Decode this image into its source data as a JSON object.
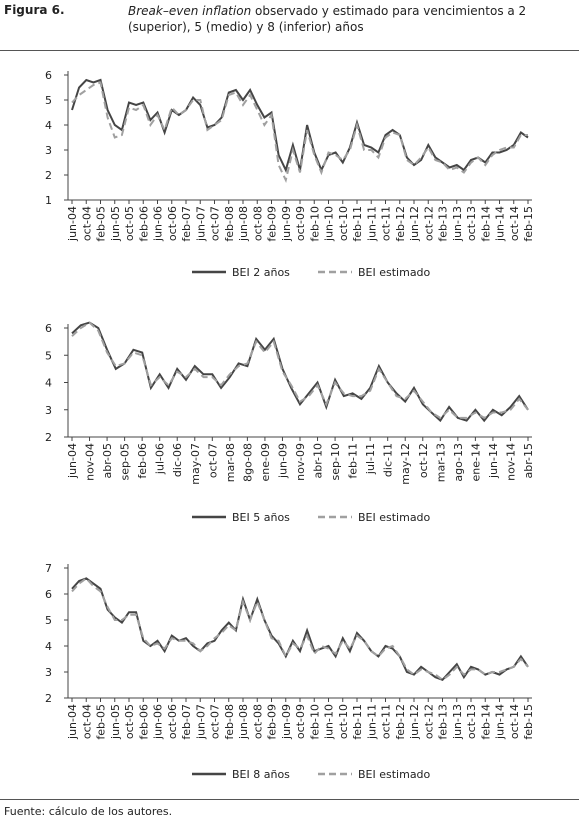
{
  "header": {
    "label": "Figura 6.",
    "title_italic": "Break–even inflation",
    "title_rest": "observado y estimado para vencimientos a 2 (superior), 5 (medio) y 8 (inferior) años"
  },
  "source": "Fuente:  cálculo de los autores.",
  "chart_data": [
    {
      "type": "line",
      "ylim": [
        1,
        6
      ],
      "yticks": [
        1,
        2,
        3,
        4,
        5,
        6
      ],
      "categories": [
        "jun-04",
        null,
        "oct-04",
        null,
        "feb-05",
        null,
        "jun-05",
        null,
        "oct-05",
        null,
        "feb-06",
        null,
        "jun-06",
        null,
        "oct-06",
        null,
        "feb-07",
        null,
        "jun-07",
        null,
        "oct-07",
        null,
        "feb-08",
        null,
        "jun-08",
        null,
        "oct-08",
        null,
        "feb-09",
        null,
        "jun-09",
        null,
        "oct-09",
        null,
        "feb-10",
        null,
        "jun-10",
        null,
        "oct-10",
        null,
        "feb-11",
        null,
        "jun-11",
        null,
        "oct-11",
        null,
        "feb-12",
        null,
        "jun-12",
        null,
        "oct-12",
        null,
        "feb-13",
        null,
        "jun-13",
        null,
        "oct-13",
        null,
        "feb-14",
        null,
        "jun-14",
        null,
        "oct-14",
        null,
        "feb-15"
      ],
      "series": [
        {
          "name": "BEI 2 años",
          "color": "#454545",
          "values": [
            4.6,
            5.5,
            5.8,
            5.7,
            5.8,
            4.6,
            4.0,
            3.8,
            4.9,
            4.8,
            4.9,
            4.2,
            4.5,
            3.7,
            4.6,
            4.4,
            4.6,
            5.1,
            4.8,
            3.9,
            4.0,
            4.3,
            5.3,
            5.4,
            5.0,
            5.4,
            4.8,
            4.3,
            4.5,
            2.8,
            2.2,
            3.2,
            2.2,
            4.0,
            2.9,
            2.2,
            2.8,
            2.9,
            2.5,
            3.1,
            4.1,
            3.2,
            3.1,
            2.9,
            3.6,
            3.8,
            3.6,
            2.7,
            2.4,
            2.6,
            3.2,
            2.7,
            2.5,
            2.3,
            2.4,
            2.2,
            2.6,
            2.7,
            2.5,
            2.9,
            2.9,
            3.0,
            3.2,
            3.7,
            3.5
          ]
        },
        {
          "name": "BEI estimado",
          "color": "#a0a0a0",
          "values": [
            4.9,
            5.2,
            5.4,
            5.6,
            5.7,
            4.3,
            3.5,
            3.6,
            4.7,
            4.6,
            4.8,
            4.0,
            4.4,
            3.8,
            4.7,
            4.4,
            4.6,
            5.0,
            5.0,
            3.8,
            4.0,
            4.2,
            5.2,
            5.3,
            4.8,
            5.2,
            4.6,
            4.0,
            4.4,
            2.4,
            1.8,
            3.0,
            2.1,
            3.8,
            2.8,
            2.1,
            2.9,
            2.8,
            2.6,
            3.0,
            4.0,
            3.0,
            3.0,
            2.7,
            3.5,
            3.7,
            3.6,
            2.6,
            2.4,
            2.7,
            3.1,
            2.6,
            2.5,
            2.2,
            2.3,
            2.1,
            2.5,
            2.7,
            2.4,
            2.8,
            3.0,
            3.1,
            3.1,
            3.6,
            3.6
          ]
        }
      ]
    },
    {
      "type": "line",
      "ylim": [
        2,
        6
      ],
      "yticks": [
        2,
        3,
        4,
        5,
        6
      ],
      "categories": [
        "jun-04",
        null,
        "nov-04",
        null,
        "abr-05",
        null,
        "sep-05",
        null,
        "feb-06",
        null,
        "jul-06",
        null,
        "dic-06",
        null,
        "may-07",
        null,
        "oct-07",
        null,
        "mar-08",
        null,
        "8go-08",
        null,
        "ene-09",
        null,
        "jun-09",
        null,
        "nov-09",
        null,
        "abr-10",
        null,
        "sep-10",
        null,
        "feb-11",
        null,
        "jul-11",
        null,
        "dic-11",
        null,
        "may-12",
        null,
        "oct-12",
        null,
        "mar-13",
        null,
        "ago-13",
        null,
        "ene-14",
        null,
        "jun-14",
        null,
        "nov-14",
        null,
        "abr-15"
      ],
      "series": [
        {
          "name": "BEI 5 años",
          "color": "#454545",
          "values": [
            5.8,
            6.1,
            6.2,
            6.0,
            5.2,
            4.5,
            4.7,
            5.2,
            5.1,
            3.8,
            4.3,
            3.8,
            4.5,
            4.1,
            4.6,
            4.3,
            4.3,
            3.8,
            4.2,
            4.7,
            4.6,
            5.6,
            5.2,
            5.6,
            4.5,
            3.8,
            3.2,
            3.6,
            4.0,
            3.1,
            4.1,
            3.5,
            3.6,
            3.4,
            3.8,
            4.6,
            4.0,
            3.6,
            3.3,
            3.8,
            3.2,
            2.9,
            2.6,
            3.1,
            2.7,
            2.6,
            3.0,
            2.6,
            3.0,
            2.8,
            3.1,
            3.5,
            3.0
          ]
        },
        {
          "name": "BEI estimado",
          "color": "#a0a0a0",
          "values": [
            5.7,
            6.0,
            6.2,
            5.9,
            5.1,
            4.6,
            4.7,
            5.1,
            5.0,
            3.9,
            4.2,
            3.9,
            4.4,
            4.2,
            4.5,
            4.2,
            4.2,
            3.9,
            4.3,
            4.6,
            4.7,
            5.5,
            5.1,
            5.5,
            4.4,
            3.9,
            3.3,
            3.5,
            3.9,
            3.2,
            4.0,
            3.6,
            3.5,
            3.5,
            3.7,
            4.5,
            4.0,
            3.5,
            3.4,
            3.7,
            3.3,
            2.9,
            2.7,
            3.0,
            2.7,
            2.7,
            2.9,
            2.7,
            2.9,
            2.9,
            3.0,
            3.4,
            3.0
          ]
        }
      ]
    },
    {
      "type": "line",
      "ylim": [
        2,
        7
      ],
      "yticks": [
        2,
        3,
        4,
        5,
        6,
        7
      ],
      "categories": [
        "jun-04",
        null,
        "oct-04",
        null,
        "feb-05",
        null,
        "jun-05",
        null,
        "oct-05",
        null,
        "feb-06",
        null,
        "jun-06",
        null,
        "oct-06",
        null,
        "feb-07",
        null,
        "jun-07",
        null,
        "oct-07",
        null,
        "feb-08",
        null,
        "jun-08",
        null,
        "oct-08",
        null,
        "feb-09",
        null,
        "jun-09",
        null,
        "oct-09",
        null,
        "feb-10",
        null,
        "jun-10",
        null,
        "oct-10",
        null,
        "feb-11",
        null,
        "jun-11",
        null,
        "oct-11",
        null,
        "feb-12",
        null,
        "jun-12",
        null,
        "oct-12",
        null,
        "feb-13",
        null,
        "jun-13",
        null,
        "oct-13",
        null,
        "feb-14",
        null,
        "jun-14",
        null,
        "oct-14",
        null,
        "feb-15"
      ],
      "series": [
        {
          "name": "BEI 8 años",
          "color": "#454545",
          "values": [
            6.2,
            6.5,
            6.6,
            6.4,
            6.2,
            5.4,
            5.1,
            4.9,
            5.3,
            5.3,
            4.2,
            4.0,
            4.2,
            3.8,
            4.4,
            4.2,
            4.3,
            4.0,
            3.8,
            4.1,
            4.2,
            4.6,
            4.9,
            4.6,
            5.8,
            5.0,
            5.8,
            5.0,
            4.4,
            4.1,
            3.6,
            4.2,
            3.8,
            4.6,
            3.8,
            3.9,
            4.0,
            3.6,
            4.3,
            3.8,
            4.5,
            4.2,
            3.8,
            3.6,
            4.0,
            3.9,
            3.6,
            3.0,
            2.9,
            3.2,
            3.0,
            2.8,
            2.7,
            3.0,
            3.3,
            2.8,
            3.2,
            3.1,
            2.9,
            3.0,
            2.9,
            3.1,
            3.2,
            3.6,
            3.2
          ]
        },
        {
          "name": "BEI estimado",
          "color": "#a0a0a0",
          "values": [
            6.1,
            6.4,
            6.6,
            6.3,
            6.1,
            5.5,
            5.0,
            5.0,
            5.2,
            5.2,
            4.3,
            4.0,
            4.1,
            3.9,
            4.3,
            4.2,
            4.2,
            4.1,
            3.8,
            4.0,
            4.3,
            4.5,
            4.8,
            4.6,
            5.7,
            5.0,
            5.7,
            5.0,
            4.3,
            4.2,
            3.6,
            4.1,
            3.9,
            4.4,
            3.7,
            4.0,
            3.9,
            3.7,
            4.2,
            3.9,
            4.4,
            4.2,
            3.8,
            3.6,
            3.9,
            4.0,
            3.6,
            3.1,
            2.9,
            3.1,
            3.0,
            2.9,
            2.7,
            2.9,
            3.2,
            2.9,
            3.1,
            3.1,
            2.9,
            3.0,
            3.0,
            3.1,
            3.2,
            3.5,
            3.2
          ]
        }
      ]
    }
  ]
}
